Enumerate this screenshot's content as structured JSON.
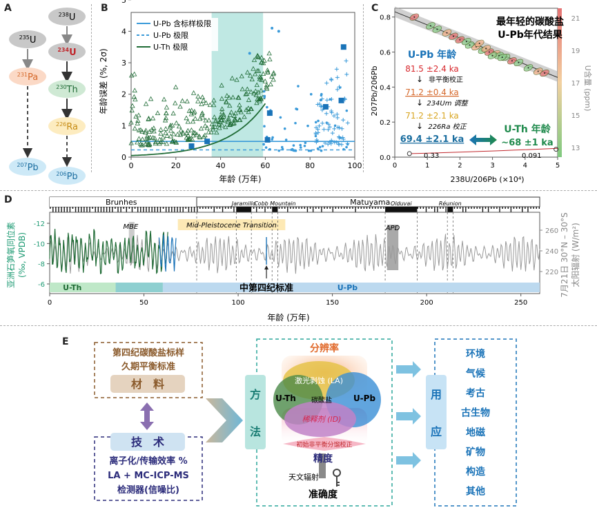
{
  "panels": {
    "a": "A",
    "b": "B",
    "c": "C",
    "d": "D",
    "e": "E"
  },
  "decay": {
    "u235": "235",
    "u235_el": "U",
    "pa231": "231",
    "pa231_el": "Pa",
    "pb207": "207",
    "pb207_el": "Pb",
    "u238": "238",
    "u238_el": "U",
    "u234": "234",
    "u234_el": "U",
    "th230": "230",
    "th230_el": "Th",
    "ra226": "226",
    "ra226_el": "Ra",
    "pb206": "206",
    "pb206_el": "Pb"
  },
  "chartB": {
    "ylabel": "年龄误差 (%, 2σ)",
    "xlabel": "年龄 (万年)",
    "xticks": [
      "0",
      "20",
      "40",
      "60",
      "80",
      "100"
    ],
    "yticks": [
      "0",
      "1",
      "2",
      "3",
      "4",
      "5"
    ],
    "legend": [
      "U-Pb 含标样极限",
      "U-Pb 极限",
      "U-Th 极限"
    ],
    "colors": {
      "upb": "#3a9ad9",
      "uth": "#1f6b35",
      "band": "#bfe8e3"
    }
  },
  "chartC": {
    "title1": "最年轻的碳酸盐",
    "title2": "U-Pb年代结果",
    "ylabel": "207Pb/206Pb",
    "xlabel": "238U/206Pb (×10⁴)",
    "xticks": [
      "0",
      "1",
      "2",
      "3",
      "4",
      "5"
    ],
    "yticks": [
      "0.0",
      "0.2",
      "0.4",
      "0.6",
      "0.8"
    ],
    "ryticks": [
      "13",
      "15",
      "17",
      "19",
      "21"
    ],
    "rlabel": "U含量 (ppm)",
    "upb_title": "U-Pb 年龄",
    "age1": "81.5 ±2.4 ka",
    "note1": "非平衡校正",
    "age2": "71.2 ±0.4 ka",
    "note2": "234Um 调整",
    "age3": "71.2 ±2.1 ka",
    "note3": "226Ra 校正",
    "age4": "69.4 ±2.1 ka",
    "uth_title": "U-Th 年龄",
    "uth_age": "~68 ±1 ka",
    "val_033": "0.33",
    "val_0091": "0.091"
  },
  "chartD": {
    "ylabel1": "亚洲石笋氧同位素",
    "ylabel2": "(‰, VPDB)",
    "rlabel1": "7月21日 30°N – 30°S",
    "rlabel2": "太阳辐射 (W/m²)",
    "xlabel": "年龄 (万年)",
    "xticks": [
      "0",
      "50",
      "100",
      "150",
      "200",
      "250"
    ],
    "yticks": [
      "-12",
      "-10",
      "-8",
      "-6"
    ],
    "ryticks": [
      "260",
      "240",
      "220"
    ],
    "chrons": [
      "Brunhes",
      "Matuyama"
    ],
    "subchrons": [
      "Jaramillo",
      "Cobb Mountain",
      "Olduvai",
      "Réunion"
    ],
    "mbe": "MBE",
    "mpt": "Mid-Pleistocene Transition",
    "apd": "APD",
    "uth": "U-Th",
    "upb": "U-Pb",
    "standard": "中第四纪标准"
  },
  "diagramE": {
    "materials_line1": "第四纪碳酸盐标样",
    "materials_line2": "久期平衡标准",
    "materials_label": "材　料",
    "tech_label": "技　术",
    "tech_line1": "离子化/传输效率 %",
    "tech_line2": "LA + MC-ICP-MS",
    "tech_line3": "检测器(信噪比)",
    "method_v1": "方",
    "method_v2": "法",
    "resolution": "分辨率",
    "laser": "激光剥蚀 (LA)",
    "uth": "U-Th",
    "upb": "U-Pb",
    "carbonate": "碳酸盐",
    "dilution": "稀释剂 (ID)",
    "init_corr": "初始非平衡分馏校正",
    "precision": "精度",
    "astro": "天文辐射",
    "accuracy": "准确度",
    "app_v1": "应",
    "app_v2": "用",
    "apps": [
      "环境",
      "气候",
      "考古",
      "古生物",
      "地磁",
      "矿物",
      "构造",
      "其他"
    ]
  }
}
